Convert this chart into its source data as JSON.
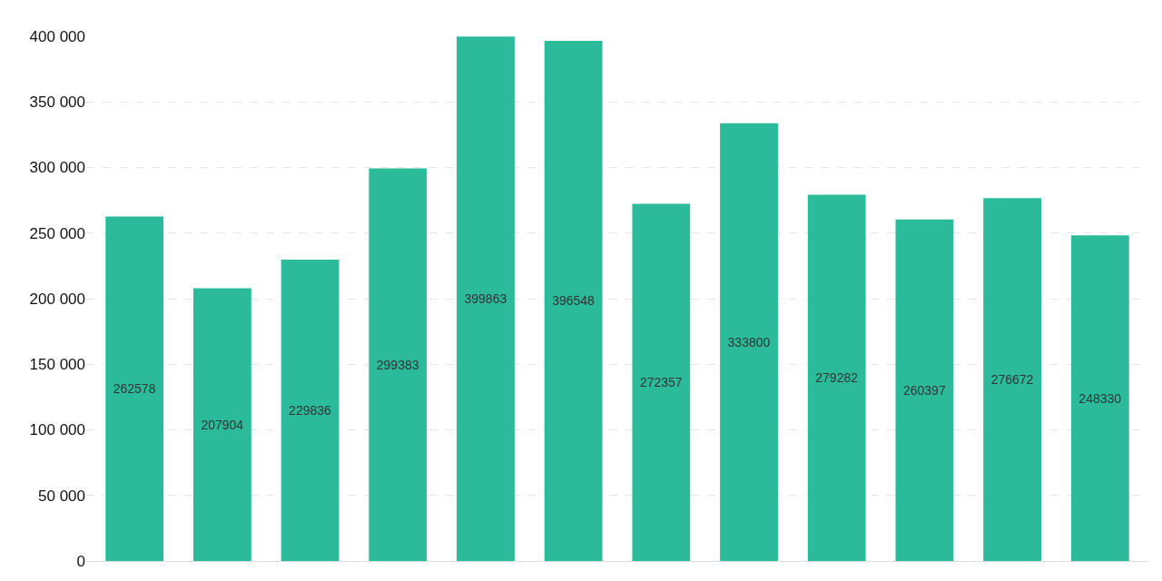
{
  "chart_data": {
    "type": "bar",
    "categories": [
      null,
      null,
      null,
      null,
      null,
      null,
      null,
      null,
      null,
      null,
      null,
      null
    ],
    "values": [
      262578,
      207904,
      229836,
      299383,
      399863,
      396548,
      272357,
      333800,
      279282,
      260397,
      276672,
      248330
    ],
    "color": "#2bbb9a",
    "ylim": [
      0,
      400000
    ],
    "yticks": [
      0,
      {
        "value": 50000,
        "label": "50 000"
      },
      {
        "value": 100000,
        "label": "100 000"
      },
      {
        "value": 150000,
        "label": "150 000"
      },
      {
        "value": 200000,
        "label": "200 000"
      },
      {
        "value": 250000,
        "label": "250 000"
      },
      {
        "value": 300000,
        "label": "300 000"
      },
      {
        "value": 350000,
        "label": "350 000"
      },
      {
        "value": 400000,
        "label": "400 000"
      }
    ],
    "grid": "y",
    "data_labels": true,
    "tick_labels": "y",
    "legend": false
  }
}
